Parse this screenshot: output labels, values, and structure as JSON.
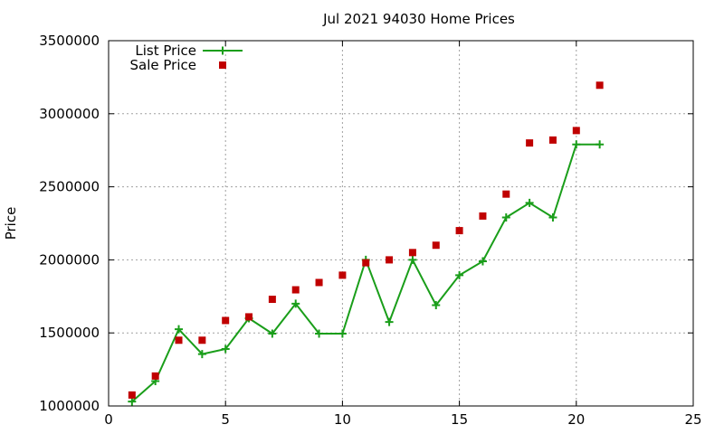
{
  "chart_data": {
    "type": "line",
    "title": "Jul 2021 94030 Home Prices",
    "xlabel": "",
    "ylabel": "Price",
    "xlim": [
      0,
      25
    ],
    "ylim": [
      1000000,
      3500000
    ],
    "x_ticks": [
      0,
      5,
      10,
      15,
      20,
      25
    ],
    "y_ticks": [
      1000000,
      1500000,
      2000000,
      2500000,
      3000000,
      3500000
    ],
    "x_tick_labels": [
      "0",
      "5",
      "10",
      "15",
      "20",
      "25"
    ],
    "y_tick_labels": [
      "1000000",
      "1500000",
      "2000000",
      "2500000",
      "3000000",
      "3500000"
    ],
    "grid": true,
    "legend_position": "top-left",
    "series": [
      {
        "name": "List Price",
        "style": "line-with-plus-markers",
        "color": "#1a9e1a",
        "x": [
          1,
          2,
          3,
          4,
          5,
          6,
          7,
          8,
          9,
          10,
          11,
          12,
          13,
          14,
          15,
          16,
          17,
          18,
          19,
          20,
          21
        ],
        "y": [
          1030000,
          1170000,
          1525000,
          1355000,
          1390000,
          1600000,
          1495000,
          1700000,
          1495000,
          1495000,
          2000000,
          1575000,
          2000000,
          1690000,
          1895000,
          1990000,
          2290000,
          2390000,
          2290000,
          2790000,
          2790000
        ]
      },
      {
        "name": "Sale Price",
        "style": "square-markers",
        "color": "#c00000",
        "x": [
          1,
          2,
          3,
          4,
          5,
          6,
          7,
          8,
          9,
          10,
          11,
          12,
          13,
          14,
          15,
          16,
          17,
          18,
          19,
          20,
          21
        ],
        "y": [
          1075000,
          1205000,
          1450000,
          1450000,
          1585000,
          1610000,
          1730000,
          1795000,
          1845000,
          1895000,
          1980000,
          2000000,
          2050000,
          2100000,
          2200000,
          2300000,
          2450000,
          2800000,
          2820000,
          2885000,
          3195000
        ]
      }
    ]
  }
}
